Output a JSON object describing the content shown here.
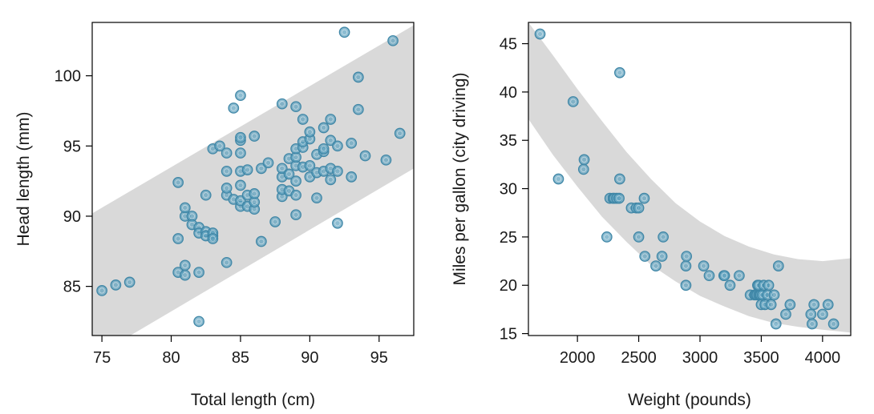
{
  "colors": {
    "point": "#5b9fbd",
    "point_edge": "#3f86a6",
    "band": "#d9d9d9",
    "axis": "#000000",
    "background": "#ffffff"
  },
  "chart_data": [
    {
      "type": "scatter",
      "title": "",
      "xlabel": "Total length (cm)",
      "ylabel": "Head length (mm)",
      "xlim": [
        74.3,
        97.5
      ],
      "ylim": [
        81.5,
        103.8
      ],
      "xticks": [
        75,
        80,
        85,
        90,
        95
      ],
      "yticks": [
        85,
        90,
        95,
        100
      ],
      "xtick_labels": [
        "75",
        "80",
        "85",
        "90",
        "95"
      ],
      "ytick_labels": [
        "85",
        "90",
        "95",
        "100"
      ],
      "grid": false,
      "band": {
        "shape": "linear",
        "x": [
          74.3,
          97.5
        ],
        "lower": [
          79.9,
          93.4
        ],
        "upper": [
          90.2,
          103.6
        ]
      },
      "x": [
        75,
        76,
        77,
        80.5,
        80.5,
        80.5,
        81,
        81,
        81,
        81,
        81.5,
        81.5,
        82,
        82,
        82,
        82,
        82.5,
        82.5,
        82.5,
        83,
        83,
        83,
        83,
        83.5,
        84,
        84,
        84,
        84,
        84,
        84.5,
        84.5,
        85,
        85,
        85,
        85,
        85,
        85,
        85,
        85,
        85.5,
        85.5,
        85.5,
        86,
        86,
        86,
        86,
        86.5,
        86.5,
        87,
        87.5,
        88,
        88,
        88,
        88,
        88,
        88.5,
        88.5,
        88.5,
        89,
        89,
        89,
        89,
        89,
        89,
        89,
        89.5,
        89.5,
        89.5,
        89.5,
        90,
        90,
        90,
        90,
        90.5,
        90.5,
        90.5,
        91,
        91,
        91,
        91,
        91.5,
        91.5,
        91.5,
        91.5,
        92,
        92,
        92,
        93,
        93,
        93.5,
        93.5,
        94,
        95.5,
        96,
        96.5,
        92.5
      ],
      "y": [
        84.7,
        85.1,
        85.3,
        86,
        88.4,
        92.4,
        90,
        90.6,
        86.5,
        85.8,
        90,
        89.4,
        89.2,
        88.8,
        86,
        82.5,
        91.5,
        88.9,
        88.6,
        94.8,
        88.6,
        88.8,
        88.4,
        95,
        86.7,
        91.5,
        92,
        93.2,
        94.5,
        91.2,
        97.7,
        90.7,
        91.1,
        92.2,
        93.2,
        94.5,
        95.4,
        95.6,
        98.6,
        90.7,
        91.5,
        93.3,
        90.5,
        91,
        91.6,
        95.7,
        88.2,
        93.4,
        93.8,
        89.6,
        91.4,
        91.9,
        92.8,
        93.4,
        98,
        91.8,
        93,
        94.1,
        90.1,
        91.5,
        92.5,
        93.6,
        94.2,
        94.8,
        97.8,
        93.5,
        94.9,
        95.3,
        96.9,
        92.8,
        93.6,
        95.5,
        96,
        91.3,
        93.1,
        94.4,
        93.2,
        94.6,
        94.8,
        96.3,
        92.6,
        93.4,
        95.4,
        96.9,
        89.5,
        93.2,
        95,
        92.8,
        95.2,
        97.6,
        99.9,
        94.3,
        94,
        102.5,
        95.9,
        103.1
      ]
    },
    {
      "type": "scatter",
      "title": "",
      "xlabel": "Weight (pounds)",
      "ylabel": "Miles per gallon (city driving)",
      "xlim": [
        1600,
        4230
      ],
      "ylim": [
        14.8,
        47.2
      ],
      "xticks": [
        2000,
        2500,
        3000,
        3500,
        4000
      ],
      "yticks": [
        15,
        20,
        25,
        30,
        35,
        40,
        45
      ],
      "xtick_labels": [
        "2000",
        "2500",
        "3000",
        "3500",
        "4000"
      ],
      "ytick_labels": [
        "15",
        "20",
        "25",
        "30",
        "35",
        "40",
        "45"
      ],
      "grid": false,
      "band": {
        "shape": "curve",
        "x": [
          1600,
          1800,
          2000,
          2200,
          2400,
          2600,
          2800,
          3000,
          3200,
          3400,
          3600,
          3800,
          4000,
          4230
        ],
        "upper": [
          47.2,
          43.8,
          40.3,
          37,
          33.8,
          31,
          28.5,
          26.6,
          25.1,
          24,
          23.2,
          22.7,
          22.5,
          22.8
        ],
        "lower": [
          37.2,
          33.5,
          30.2,
          27.1,
          24.5,
          22.1,
          20.4,
          18.9,
          17.8,
          16.8,
          16.1,
          15.7,
          15.4,
          15.1
        ]
      },
      "x": [
        1695,
        1845,
        1965,
        2050,
        2055,
        2240,
        2265,
        2290,
        2300,
        2320,
        2340,
        2345,
        2345,
        2440,
        2480,
        2500,
        2500,
        2550,
        2545,
        2640,
        2690,
        2700,
        2885,
        2885,
        2890,
        3030,
        3075,
        3195,
        3200,
        3245,
        3320,
        3410,
        3445,
        3455,
        3465,
        3470,
        3480,
        3480,
        3490,
        3495,
        3500,
        3510,
        3520,
        3530,
        3550,
        3560,
        3580,
        3605,
        3620,
        3640,
        3700,
        3735,
        3905,
        3915,
        3930,
        4000,
        4045,
        4090
      ],
      "y": [
        46,
        31,
        39,
        32,
        33,
        25,
        29,
        29,
        29,
        29,
        29,
        31,
        42,
        28,
        28,
        25,
        28,
        23,
        29,
        22,
        23,
        25,
        20,
        22,
        23,
        22,
        21,
        21,
        21,
        20,
        21,
        19,
        19,
        19,
        19,
        20,
        19,
        20,
        19,
        19,
        18,
        19,
        20,
        18,
        19,
        20,
        18,
        19,
        16,
        22,
        17,
        18,
        17,
        16,
        18,
        17,
        18,
        16
      ]
    }
  ]
}
